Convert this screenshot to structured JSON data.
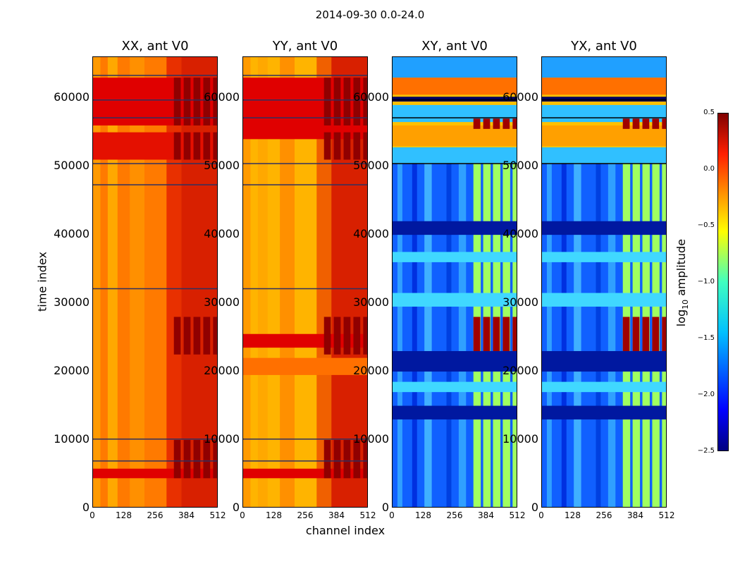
{
  "chart_data": {
    "type": "heatmap",
    "suptitle": "2014-09-30 0.0-24.0",
    "xlabel": "channel index",
    "ylabel": "time index",
    "xlim": [
      0,
      512
    ],
    "ylim": [
      0,
      66000
    ],
    "xticks": [
      "0",
      "128",
      "256",
      "384",
      "512"
    ],
    "yticks": [
      "0",
      "10000",
      "20000",
      "30000",
      "40000",
      "50000",
      "60000"
    ],
    "colorbar": {
      "label": "log10 amplitude",
      "label_main": "log",
      "label_sub": "10",
      "label_rest": " amplitude",
      "range": [
        -2.5,
        0.5
      ],
      "ticks": [
        "0.5",
        "0.0",
        "−0.5",
        "−1.0",
        "−1.5",
        "−2.0",
        "−2.5"
      ],
      "colormap": "jet"
    },
    "panels": [
      {
        "title": "XX, ant V0",
        "pol": "XX",
        "approx_log_amplitude_range": [
          -0.6,
          0.4
        ]
      },
      {
        "title": "YY, ant V0",
        "pol": "YY",
        "approx_log_amplitude_range": [
          -0.6,
          0.4
        ]
      },
      {
        "title": "XY, ant V0",
        "pol": "XY",
        "approx_log_amplitude_range": [
          -2.5,
          0.3
        ]
      },
      {
        "title": "YX, ant V0",
        "pol": "YX",
        "approx_log_amplitude_range": [
          -2.5,
          0.3
        ]
      }
    ]
  },
  "colors": {
    "dark_red": "#800000",
    "red": "#e00000",
    "orange": "#ff8000",
    "yellow": "#f0f000",
    "cyan": "#40e0d0",
    "light_blue": "#20a0ff",
    "blue": "#0030ff",
    "navy": "#000080"
  }
}
